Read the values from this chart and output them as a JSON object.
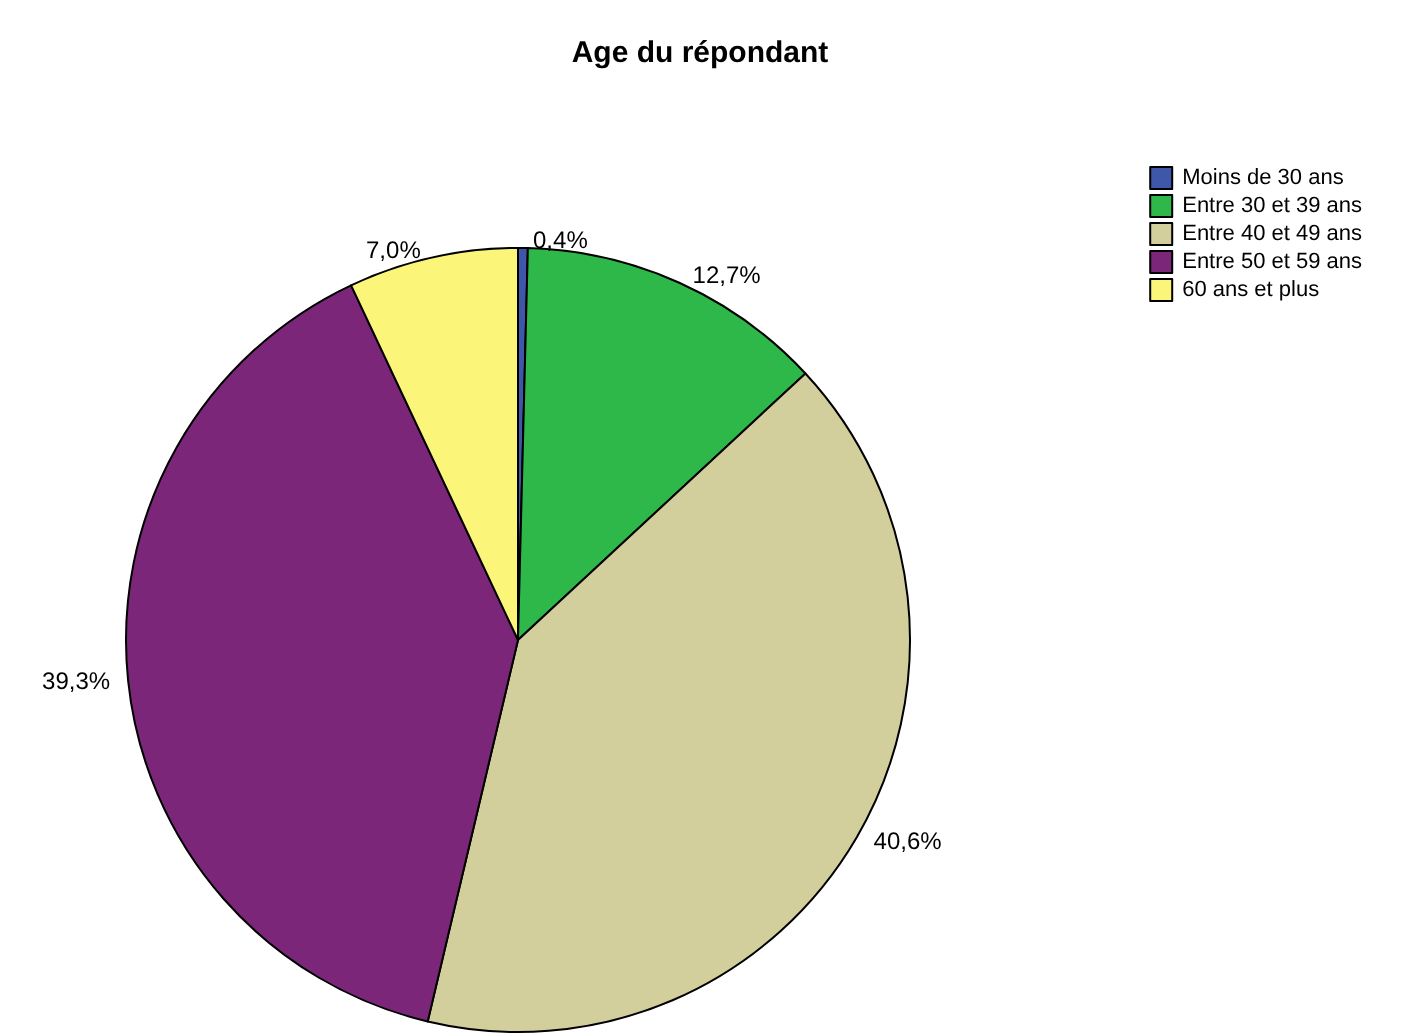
{
  "chart_data": {
    "type": "pie",
    "title": "Age du répondant",
    "categories": [
      "Moins de 30 ans",
      "Entre 30 et 39 ans",
      "Entre 40 et 49 ans",
      "Entre 50 et 59 ans",
      "60 ans et plus"
    ],
    "values": [
      0.4,
      12.7,
      40.6,
      39.3,
      7.0
    ],
    "colors": [
      "#3f57a8",
      "#2fb84a",
      "#d3cf9d",
      "#7b2679",
      "#fbf67a"
    ],
    "value_labels": [
      "0,4%",
      "12,7%",
      "40,6%",
      "39,3%",
      "7,0%"
    ],
    "legend": "top right"
  }
}
